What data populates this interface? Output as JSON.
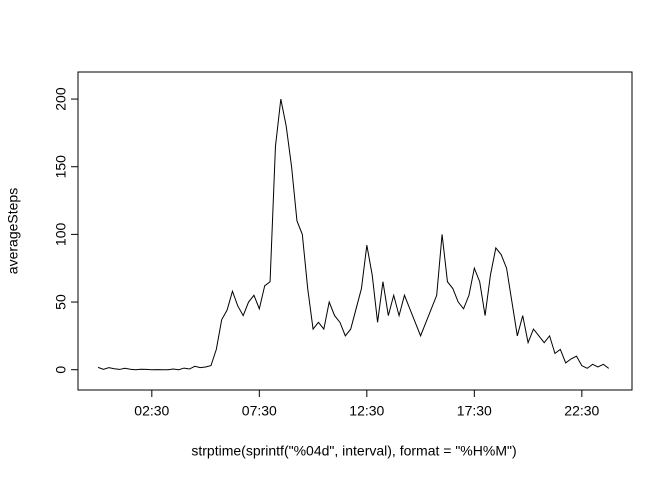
{
  "chart_data": {
    "type": "line",
    "x_label": "strptime(sprintf(\"%04d\", interval), format = \"%H%M\")",
    "y_label": "averageSteps",
    "x": [
      0,
      15,
      30,
      45,
      60,
      75,
      90,
      105,
      120,
      135,
      150,
      165,
      180,
      195,
      210,
      225,
      240,
      255,
      270,
      285,
      300,
      315,
      330,
      345,
      360,
      375,
      390,
      405,
      420,
      435,
      450,
      465,
      480,
      495,
      510,
      525,
      540,
      555,
      570,
      585,
      600,
      615,
      630,
      645,
      660,
      675,
      690,
      705,
      720,
      735,
      750,
      765,
      780,
      795,
      810,
      825,
      840,
      855,
      870,
      885,
      900,
      915,
      930,
      945,
      960,
      975,
      990,
      1005,
      1020,
      1035,
      1050,
      1065,
      1080,
      1095,
      1110,
      1125,
      1140,
      1155,
      1170,
      1185,
      1200,
      1215,
      1230,
      1245,
      1260,
      1275,
      1290,
      1305,
      1320,
      1335,
      1350,
      1365,
      1380,
      1395,
      1410,
      1425
    ],
    "series": [
      {
        "color": "#000000",
        "values": [
          1.7,
          0.3,
          1.5,
          0.7,
          0.2,
          1.1,
          0.3,
          0,
          0.3,
          0.2,
          0,
          0.1,
          0,
          0,
          0.5,
          0,
          1.2,
          0.5,
          2.5,
          1.5,
          2,
          3,
          15,
          37,
          44,
          58,
          47,
          40,
          50,
          55,
          45,
          62,
          65,
          165,
          200,
          180,
          150,
          110,
          100,
          60,
          30,
          35,
          30,
          50,
          40,
          35,
          25,
          30,
          45,
          60,
          92,
          70,
          35,
          65,
          40,
          55,
          40,
          55,
          45,
          35,
          25,
          35,
          45,
          55,
          100,
          65,
          60,
          50,
          45,
          55,
          75,
          65,
          40,
          70,
          90,
          85,
          75,
          50,
          25,
          40,
          20,
          30,
          25,
          20,
          25,
          12,
          15,
          5,
          8,
          10,
          3,
          1,
          4,
          2,
          4,
          1
        ]
      }
    ],
    "xlim": [
      -56,
      1490
    ],
    "xticks": [
      {
        "value": 150,
        "label": "02:30"
      },
      {
        "value": 450,
        "label": "07:30"
      },
      {
        "value": 750,
        "label": "12:30"
      },
      {
        "value": 1050,
        "label": "17:30"
      },
      {
        "value": 1350,
        "label": "22:30"
      }
    ],
    "ylim": [
      -15,
      220
    ],
    "yticks": [
      0,
      50,
      100,
      150,
      200
    ]
  }
}
